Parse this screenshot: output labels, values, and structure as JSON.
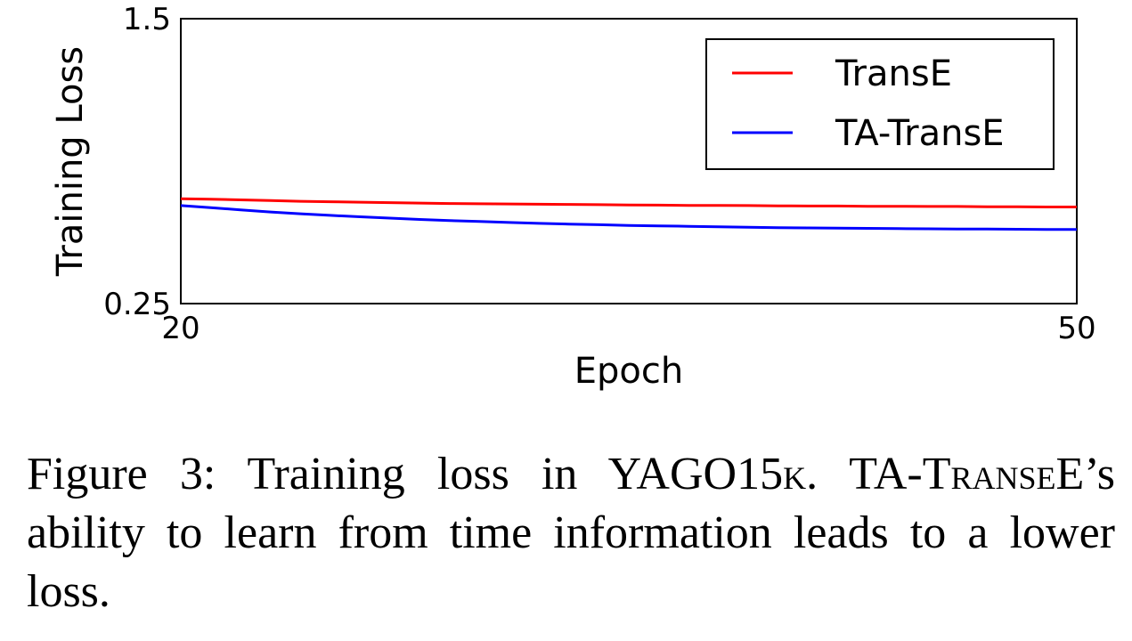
{
  "chart_data": {
    "type": "line",
    "xlabel": "Epoch",
    "ylabel": "Training Loss",
    "xlim": [
      20,
      50
    ],
    "ylim": [
      0.25,
      1.5
    ],
    "xticks": [
      "20",
      "50"
    ],
    "yticks": [
      "1.5",
      "0.25"
    ],
    "grid": false,
    "legend_position": "top-right",
    "series": [
      {
        "name": "TransE",
        "color": "#ff0000",
        "x": [
          20,
          21,
          22,
          23,
          24,
          25,
          26,
          27,
          28,
          29,
          30,
          31,
          32,
          33,
          34,
          35,
          36,
          37,
          38,
          39,
          40,
          41,
          42,
          43,
          44,
          45,
          46,
          47,
          48,
          49,
          50
        ],
        "y": [
          0.71,
          0.708,
          0.705,
          0.702,
          0.699,
          0.697,
          0.695,
          0.693,
          0.691,
          0.689,
          0.688,
          0.687,
          0.686,
          0.685,
          0.684,
          0.683,
          0.682,
          0.681,
          0.681,
          0.68,
          0.679,
          0.678,
          0.678,
          0.677,
          0.677,
          0.676,
          0.676,
          0.675,
          0.675,
          0.674,
          0.674
        ]
      },
      {
        "name": "TA-TransE",
        "color": "#0000ff",
        "x": [
          20,
          21,
          22,
          23,
          24,
          25,
          26,
          27,
          28,
          29,
          30,
          31,
          32,
          33,
          34,
          35,
          36,
          37,
          38,
          39,
          40,
          41,
          42,
          43,
          44,
          45,
          46,
          47,
          48,
          49,
          50
        ],
        "y": [
          0.68,
          0.671,
          0.661,
          0.652,
          0.644,
          0.637,
          0.631,
          0.625,
          0.619,
          0.614,
          0.61,
          0.606,
          0.602,
          0.599,
          0.596,
          0.593,
          0.591,
          0.589,
          0.587,
          0.585,
          0.583,
          0.582,
          0.581,
          0.58,
          0.579,
          0.578,
          0.577,
          0.577,
          0.576,
          0.575,
          0.575
        ]
      }
    ]
  },
  "caption": {
    "prefix": "Figure 3:   Training loss in YAGO15",
    "k": "k",
    "middle": ".   TA-T",
    "ranse": "ranse",
    "suffix": "E’s ability to learn from time information leads to a lower loss."
  }
}
